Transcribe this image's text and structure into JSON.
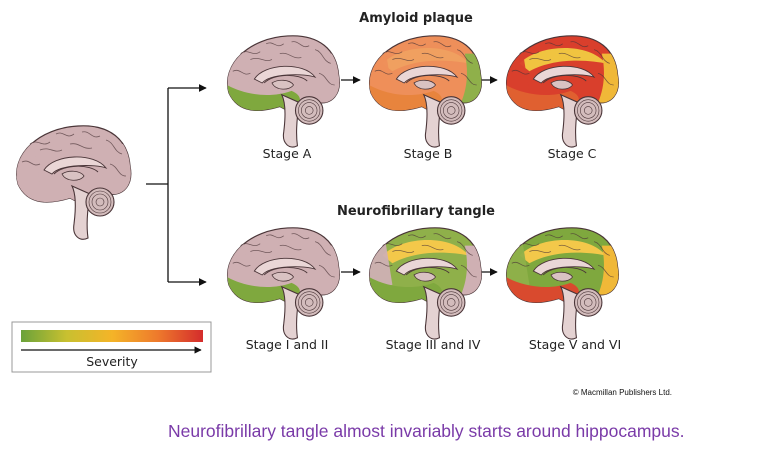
{
  "rows": {
    "amyloid": {
      "title": "Amyloid plaque",
      "stages": [
        {
          "label": "Stage A",
          "cortex": "#cfb0b3",
          "patch": "#7fa83e",
          "upper": "#cfb0b3",
          "front": "#cfb0b3",
          "back": "#cfb0b3"
        },
        {
          "label": "Stage B",
          "cortex": "#ee8f5a",
          "patch": "#e8843d",
          "upper": "#f0a060",
          "front": "#ee8f5a",
          "back": "#8fb04a"
        },
        {
          "label": "Stage C",
          "cortex": "#d93f2c",
          "patch": "#e06030",
          "upper": "#f0c440",
          "front": "#d93f2c",
          "back": "#f0b838"
        }
      ]
    },
    "tangle": {
      "title": "Neurofibrillary tangle",
      "stages": [
        {
          "label": "Stage I and II",
          "cortex": "#cfb0b3",
          "patch": "#7fa83e",
          "upper": "#cfb0b3",
          "front": "#cfb0b3",
          "back": "#cfb0b3"
        },
        {
          "label": "Stage  III and IV",
          "cortex": "#8fb04a",
          "patch": "#7fa83e",
          "upper": "#f3c84a",
          "front": "#cfb0b3",
          "back": "#cfb0b3"
        },
        {
          "label": "Stage  V and VI",
          "cortex": "#7fa83e",
          "patch": "#d94a2e",
          "upper": "#f3c84a",
          "front": "#8fb04a",
          "back": "#f0b838"
        }
      ]
    }
  },
  "legend": {
    "label": "Severity",
    "colors": [
      "#6aa23a",
      "#c8c030",
      "#f4b428",
      "#ee7a2c",
      "#d42c2c"
    ]
  },
  "copyright": "© Macmillan Publishers Ltd.",
  "caption": "Neurofibrillary tangle almost invariably starts around hippocampus."
}
